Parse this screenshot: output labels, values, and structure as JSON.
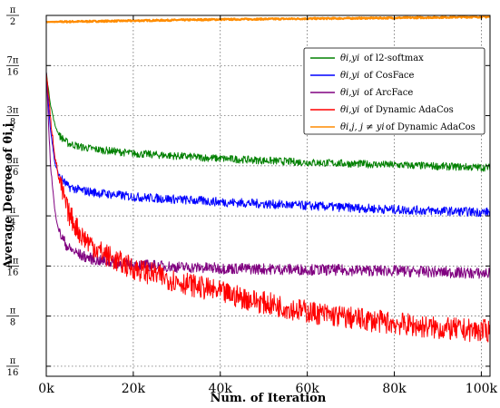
{
  "chart_data": {
    "type": "line",
    "xlabel": "Num. of Iteration",
    "ylabel": "Average Degree of θi,j",
    "xlim": [
      0,
      102000
    ],
    "ylim": [
      0.157,
      1.5708
    ],
    "grid": true,
    "legend_position": "top-right",
    "x_ticks": [
      {
        "value": 0,
        "label": "0k"
      },
      {
        "value": 20000,
        "label": "20k"
      },
      {
        "value": 40000,
        "label": "40k"
      },
      {
        "value": 60000,
        "label": "60k"
      },
      {
        "value": 80000,
        "label": "80k"
      },
      {
        "value": 100000,
        "label": "100k"
      }
    ],
    "y_ticks": [
      {
        "value": 1.5708,
        "num": "π",
        "den": "2"
      },
      {
        "value": 1.3744,
        "num": "7π",
        "den": "16"
      },
      {
        "value": 1.1781,
        "num": "3π",
        "den": "8"
      },
      {
        "value": 0.9817,
        "num": "5π",
        "den": "16"
      },
      {
        "value": 0.7854,
        "num": "π",
        "den": "4"
      },
      {
        "value": 0.589,
        "num": "3π",
        "den": "16"
      },
      {
        "value": 0.3927,
        "num": "π",
        "den": "8"
      },
      {
        "value": 0.1963,
        "num": "π",
        "den": "16"
      }
    ],
    "series": [
      {
        "name": "θi,yi of l2-softmax",
        "legend_symbol": "θi,yi",
        "legend_label": "of l2-softmax",
        "color": "#008000",
        "noise": 0.015,
        "x": [
          0,
          500,
          1000,
          2000,
          3000,
          5000,
          8000,
          12000,
          20000,
          30000,
          40000,
          60000,
          80000,
          100000,
          102000
        ],
        "values": [
          1.35,
          1.28,
          1.22,
          1.14,
          1.1,
          1.07,
          1.055,
          1.045,
          1.03,
          1.02,
          1.01,
          0.995,
          0.985,
          0.975,
          0.975
        ]
      },
      {
        "name": "θi,yi of CosFace",
        "legend_symbol": "θi,yi",
        "legend_label": "of CosFace",
        "color": "#0000ff",
        "noise": 0.018,
        "x": [
          0,
          500,
          1000,
          2000,
          3000,
          5000,
          8000,
          12000,
          20000,
          30000,
          40000,
          60000,
          80000,
          100000,
          102000
        ],
        "values": [
          1.35,
          1.22,
          1.12,
          0.99,
          0.94,
          0.9,
          0.885,
          0.875,
          0.86,
          0.85,
          0.84,
          0.825,
          0.81,
          0.8,
          0.8
        ]
      },
      {
        "name": "θi,yi of ArcFace",
        "legend_symbol": "θi,yi",
        "legend_label": "of ArcFace",
        "color": "#800080",
        "noise": 0.022,
        "x": [
          0,
          500,
          1000,
          2000,
          3000,
          5000,
          8000,
          12000,
          20000,
          30000,
          40000,
          60000,
          80000,
          100000,
          102000
        ],
        "values": [
          1.35,
          1.15,
          0.98,
          0.8,
          0.72,
          0.66,
          0.63,
          0.61,
          0.595,
          0.585,
          0.58,
          0.575,
          0.57,
          0.56,
          0.56
        ]
      },
      {
        "name": "θi,yi of Dynamic AdaCos",
        "legend_symbol": "θi,yi",
        "legend_label": "of Dynamic AdaCos",
        "color": "#ff0000",
        "noise": 0.045,
        "x": [
          0,
          500,
          1000,
          2000,
          3000,
          5000,
          8000,
          12000,
          16000,
          20000,
          30000,
          40000,
          50000,
          60000,
          70000,
          80000,
          90000,
          100000,
          102000
        ],
        "values": [
          1.35,
          1.26,
          1.16,
          1.02,
          0.92,
          0.8,
          0.71,
          0.65,
          0.61,
          0.58,
          0.53,
          0.485,
          0.445,
          0.41,
          0.385,
          0.365,
          0.345,
          0.335,
          0.335
        ]
      },
      {
        "name": "θi,j, j ≠ yi of Dynamic AdaCos",
        "legend_symbol": "θi,j, j ≠ yi",
        "legend_label": "of Dynamic AdaCos",
        "color": "#ff8c00",
        "noise": 0.003,
        "x": [
          0,
          20000,
          40000,
          60000,
          80000,
          100000,
          102000
        ],
        "values": [
          1.545,
          1.55,
          1.555,
          1.558,
          1.561,
          1.565,
          1.565
        ]
      }
    ]
  }
}
